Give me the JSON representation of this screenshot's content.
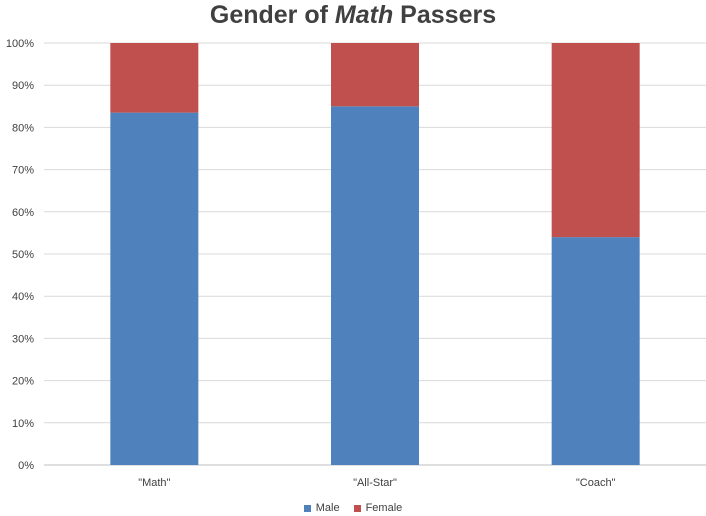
{
  "chart_data": {
    "type": "bar",
    "stacked": true,
    "title_parts": [
      "Gender of ",
      "Math",
      " Passers"
    ],
    "categories": [
      "\"Math\"",
      "\"All-Star\"",
      "\"Coach\""
    ],
    "series": [
      {
        "name": "Male",
        "color": "#4f81bd",
        "values": [
          83.5,
          85,
          54
        ]
      },
      {
        "name": "Female",
        "color": "#c0504d",
        "values": [
          16.5,
          15,
          46
        ]
      }
    ],
    "ylim": [
      0,
      100
    ],
    "y_ticks": [
      "0%",
      "10%",
      "20%",
      "30%",
      "40%",
      "50%",
      "60%",
      "70%",
      "80%",
      "90%",
      "100%"
    ],
    "grid": true,
    "legend_position": "bottom"
  }
}
